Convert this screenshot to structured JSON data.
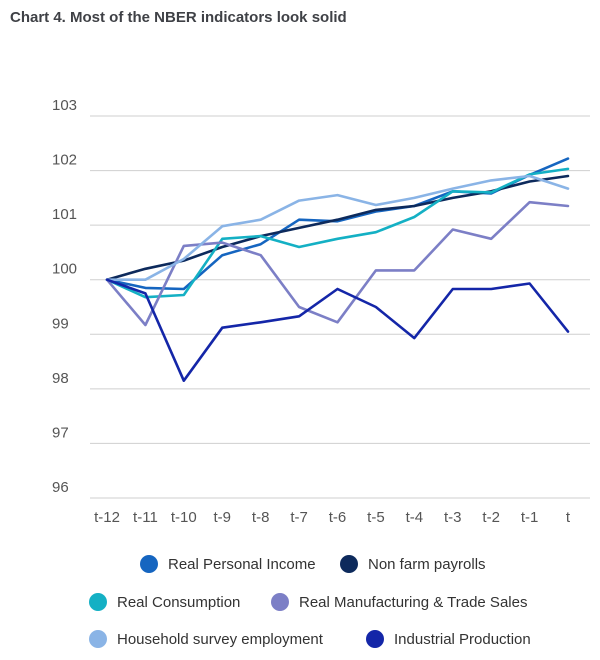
{
  "chart_data": {
    "type": "line",
    "title": "Chart 4. Most of the NBER indicators look solid",
    "xlabel": "",
    "ylabel": "",
    "ylim": [
      96,
      103
    ],
    "yticks": [
      96,
      97,
      98,
      99,
      100,
      101,
      102,
      103
    ],
    "grid": true,
    "legend_placement": "bottom",
    "categories": [
      "t-12",
      "t-11",
      "t-10",
      "t-9",
      "t-8",
      "t-7",
      "t-6",
      "t-5",
      "t-4",
      "t-3",
      "t-2",
      "t-1",
      "t"
    ],
    "series": [
      {
        "name": "Real Personal Income",
        "color": "#1565c0",
        "values": [
          100.0,
          99.85,
          99.83,
          100.45,
          100.65,
          101.1,
          101.07,
          101.25,
          101.35,
          101.62,
          101.58,
          101.92,
          102.22
        ]
      },
      {
        "name": "Non farm payrolls",
        "color": "#0d2a5c",
        "values": [
          100.0,
          100.2,
          100.35,
          100.6,
          100.8,
          100.95,
          101.1,
          101.28,
          101.35,
          101.5,
          101.62,
          101.8,
          101.9
        ]
      },
      {
        "name": "Real Consumption",
        "color": "#14b0c4",
        "values": [
          100.0,
          99.68,
          99.72,
          100.75,
          100.8,
          100.6,
          100.75,
          100.87,
          101.15,
          101.62,
          101.6,
          101.93,
          102.03
        ]
      },
      {
        "name": "Real Manufacturing & Trade Sales",
        "color": "#7c7fc6",
        "values": [
          100.0,
          99.17,
          100.62,
          100.68,
          100.45,
          99.5,
          99.22,
          100.17,
          100.17,
          100.92,
          100.75,
          101.42,
          101.35
        ]
      },
      {
        "name": "Household survey employment",
        "color": "#8ab4e6",
        "values": [
          100.0,
          100.0,
          100.38,
          100.98,
          101.1,
          101.45,
          101.55,
          101.37,
          101.5,
          101.67,
          101.82,
          101.9,
          101.67
        ]
      },
      {
        "name": "Industrial Production",
        "color": "#1426a8",
        "values": [
          100.0,
          99.75,
          98.15,
          99.12,
          99.22,
          99.33,
          99.83,
          99.5,
          98.93,
          99.83,
          99.83,
          99.93,
          99.05
        ]
      }
    ]
  }
}
